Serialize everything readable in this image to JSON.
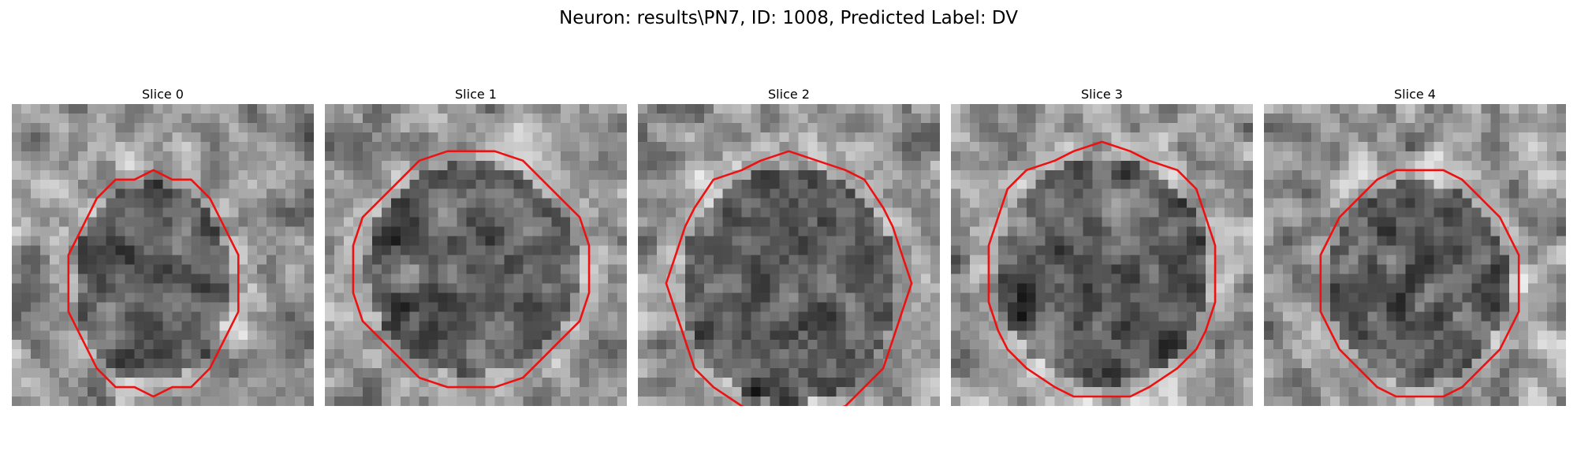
{
  "figure": {
    "title": "Neuron: results\\PN7, ID: 1008, Predicted Label: DV",
    "contour_color": "#ee1111",
    "panels": [
      {
        "label": "Slice 0"
      },
      {
        "label": "Slice 1"
      },
      {
        "label": "Slice 2"
      },
      {
        "label": "Slice 3"
      },
      {
        "label": "Slice 4"
      }
    ]
  }
}
